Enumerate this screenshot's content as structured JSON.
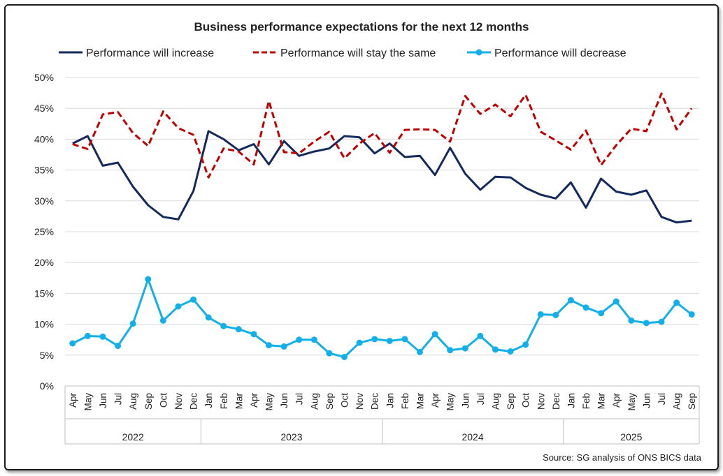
{
  "chart_data": {
    "type": "line",
    "title": "Business performance expectations for the next 12 months",
    "source": "Source: SG analysis of ONS BICS data",
    "ylim": [
      0,
      50
    ],
    "yticks": [
      "0%",
      "5%",
      "10%",
      "15%",
      "20%",
      "25%",
      "30%",
      "35%",
      "40%",
      "45%",
      "50%"
    ],
    "grid": true,
    "legend_position": "top",
    "years": [
      {
        "label": "2022",
        "months": 9
      },
      {
        "label": "2023",
        "months": 12
      },
      {
        "label": "2024",
        "months": 12
      },
      {
        "label": "2025",
        "months": 9
      }
    ],
    "categories": [
      "Apr",
      "May",
      "Jun",
      "Jul",
      "Aug",
      "Sep",
      "Oct",
      "Nov",
      "Dec",
      "Jan",
      "Feb",
      "Mar",
      "Apr",
      "May",
      "Jun",
      "Jul",
      "Aug",
      "Sep",
      "Oct",
      "Nov",
      "Dec",
      "Jan",
      "Feb",
      "Mar",
      "Apr",
      "May",
      "Jun",
      "Jul",
      "Aug",
      "Sep",
      "Oct",
      "Nov",
      "Dec",
      "Jan",
      "Feb",
      "Mar",
      "Apr",
      "May",
      "Jun",
      "Jul",
      "Aug",
      "Sep"
    ],
    "series": [
      {
        "name": "Performance will increase",
        "color": "#14295e",
        "style": "solid",
        "values": [
          39.3,
          40.5,
          35.7,
          36.2,
          32.3,
          29.3,
          27.4,
          27.0,
          31.6,
          41.3,
          40.0,
          38.2,
          39.2,
          35.9,
          39.7,
          37.3,
          38.0,
          38.5,
          40.5,
          40.3,
          37.7,
          39.3,
          37.1,
          37.3,
          34.2,
          38.6,
          34.4,
          31.8,
          33.9,
          33.8,
          32.1,
          31.0,
          30.4,
          33.0,
          28.9,
          33.6,
          31.5,
          31.0,
          31.7,
          27.4,
          26.5,
          26.8
        ]
      },
      {
        "name": "Performance will stay the same",
        "color": "#c00000",
        "style": "dashed",
        "values": [
          39.2,
          38.4,
          44.0,
          44.4,
          41.0,
          38.9,
          44.5,
          41.8,
          40.7,
          33.8,
          38.5,
          38.0,
          35.9,
          46.2,
          37.9,
          37.7,
          39.6,
          41.2,
          36.9,
          39.3,
          41.0,
          37.8,
          41.5,
          41.6,
          41.5,
          39.6,
          47.0,
          44.1,
          45.6,
          43.7,
          47.2,
          41.2,
          39.8,
          38.3,
          41.4,
          35.8,
          39.0,
          41.7,
          41.3,
          47.4,
          41.6,
          45.0
        ]
      },
      {
        "name": "Performance will decrease",
        "color": "#12b0ea",
        "style": "markers",
        "values": [
          6.9,
          8.1,
          8.0,
          6.5,
          10.1,
          17.3,
          10.6,
          12.9,
          14.0,
          11.1,
          9.7,
          9.2,
          8.4,
          6.6,
          6.4,
          7.5,
          7.5,
          5.3,
          4.7,
          7.0,
          7.6,
          7.3,
          7.6,
          5.5,
          8.4,
          5.8,
          6.1,
          8.1,
          5.9,
          5.6,
          6.7,
          11.6,
          11.5,
          13.9,
          12.7,
          11.8,
          13.7,
          10.6,
          10.2,
          10.4,
          13.5,
          11.6
        ]
      }
    ]
  }
}
